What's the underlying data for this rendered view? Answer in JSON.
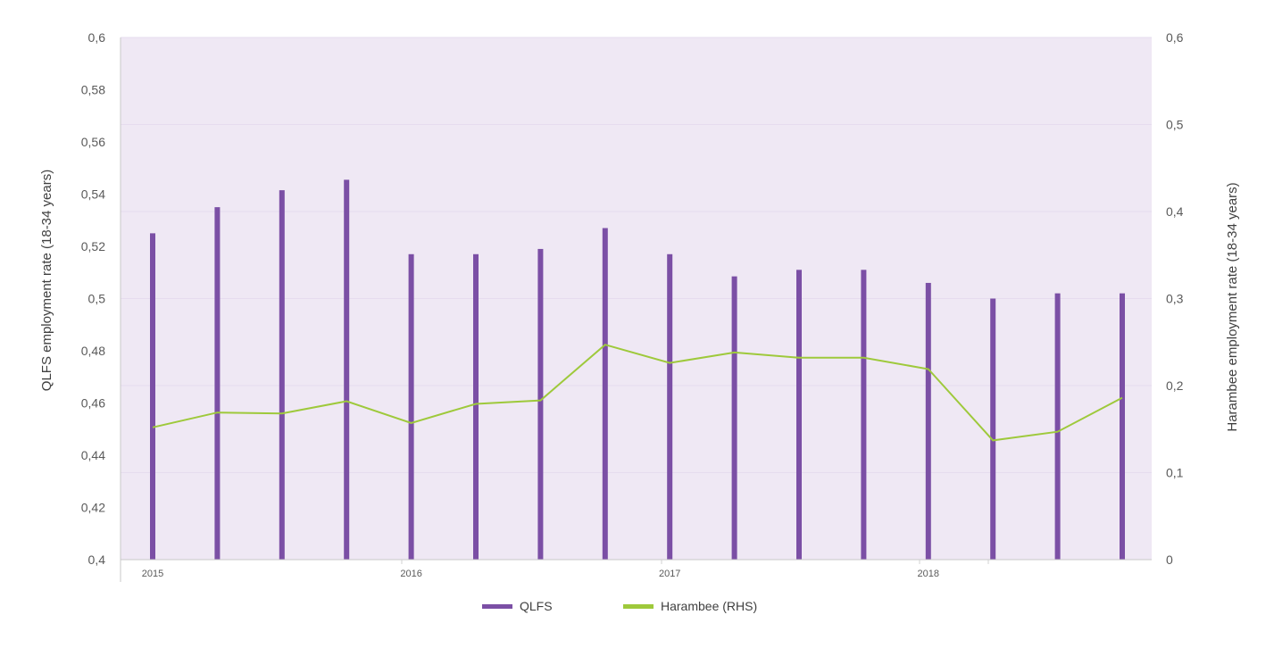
{
  "chart_data": {
    "type": "bar",
    "categories": [
      "2015Q1",
      "2015Q2",
      "2015Q3",
      "2015Q4",
      "2016Q1",
      "2016Q2",
      "2016Q3",
      "2016Q4",
      "2017Q1",
      "2017Q2",
      "2017Q3",
      "2017Q4",
      "2018Q1",
      "2018Q2",
      "2018Q3",
      "2018Q4"
    ],
    "x_tick_labels": [
      "2015",
      "2016",
      "2017",
      "2018"
    ],
    "series": [
      {
        "name": "QLFS",
        "type": "bar",
        "axis": "left",
        "color": "#7b4fa5",
        "values": [
          0.525,
          0.535,
          0.5415,
          0.5455,
          0.517,
          0.517,
          0.519,
          0.527,
          0.517,
          0.5085,
          0.511,
          0.511,
          0.506,
          0.5,
          0.502,
          0.502
        ]
      },
      {
        "name": "Harambee (RHS)",
        "type": "line",
        "axis": "right",
        "color": "#9ec93b",
        "values": [
          0.152,
          0.169,
          0.168,
          0.182,
          0.157,
          0.179,
          0.183,
          0.247,
          0.226,
          0.238,
          0.232,
          0.232,
          0.219,
          0.137,
          0.147,
          0.186
        ]
      }
    ],
    "ylabel": "QLFS employment rate (18-34 years)",
    "ylabel_right": "Harambee employment rate (18-34 years)",
    "ylim": [
      0.4,
      0.6
    ],
    "ylim_right": [
      0,
      0.6
    ],
    "y_ticks": [
      "0,4",
      "0,42",
      "0,44",
      "0,46",
      "0,48",
      "0,5",
      "0,52",
      "0,54",
      "0,56",
      "0,58",
      "0,6"
    ],
    "y_ticks_right": [
      "0",
      "0,1",
      "0,2",
      "0,3",
      "0,4",
      "0,5",
      "0,6"
    ],
    "legend_position": "bottom",
    "plot_background": "#efe8f4",
    "grid": true
  },
  "legend": {
    "items": [
      {
        "label": "QLFS",
        "color": "#7b4fa5"
      },
      {
        "label": "Harambee (RHS)",
        "color": "#9ec93b"
      }
    ]
  }
}
